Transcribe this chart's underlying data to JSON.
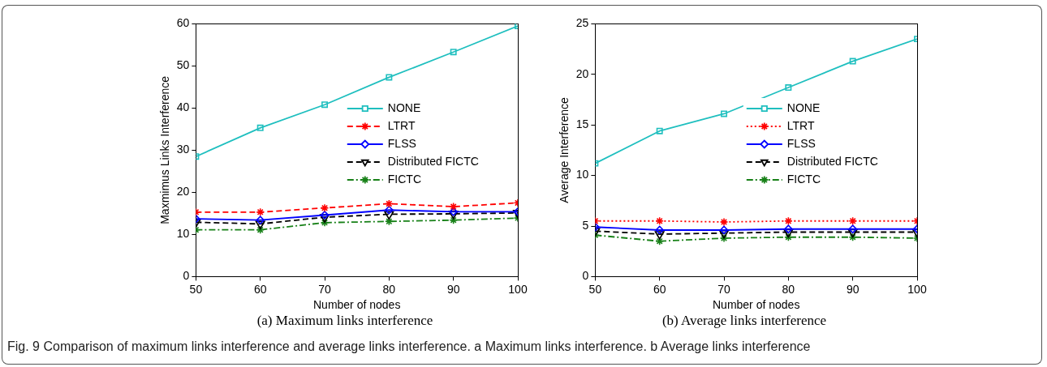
{
  "chart_data": [
    {
      "type": "line",
      "subtitle": "(a) Maximum links interference",
      "xlabel": "Number of nodes",
      "ylabel": "Maxmimus Links Interference",
      "x": [
        50,
        60,
        70,
        80,
        90,
        100
      ],
      "xlim": [
        50,
        100
      ],
      "xticks": [
        50,
        60,
        70,
        80,
        90,
        100
      ],
      "ylim": [
        0,
        60
      ],
      "yticks": [
        0,
        10,
        20,
        30,
        40,
        50,
        60
      ],
      "grid": false,
      "legend": "right",
      "series": [
        {
          "name": "NONE",
          "color": "#1fbfbf",
          "marker": "square",
          "line_style": "solid",
          "values": [
            28.5,
            35.3,
            40.8,
            47.3,
            53.3,
            59.5
          ]
        },
        {
          "name": "LTRT",
          "color": "#ff0000",
          "marker": "cross",
          "line_style": "dashed",
          "values": [
            15.3,
            15.3,
            16.3,
            17.3,
            16.6,
            17.5
          ]
        },
        {
          "name": "FLSS",
          "color": "#0000ff",
          "marker": "diamond",
          "line_style": "solid",
          "values": [
            13.7,
            13.4,
            14.6,
            15.8,
            15.4,
            15.4
          ]
        },
        {
          "name": "Distributed FICTC",
          "color": "#000000",
          "marker": "triangle",
          "line_style": "dashed",
          "values": [
            12.9,
            12.5,
            14.1,
            14.8,
            14.9,
            15.1
          ]
        },
        {
          "name": "FICTC",
          "color": "#178017",
          "marker": "cross",
          "line_style": "dashdot",
          "values": [
            11.1,
            11.1,
            12.8,
            13.1,
            13.4,
            13.9
          ]
        }
      ],
      "annotations": [
        "Fig. 9 Comparison of maximum links interference and average links interference. a Maximum links interference. b Average links interference"
      ]
    },
    {
      "type": "line",
      "subtitle": "(b) Average links interference",
      "xlabel": "Number of nodes",
      "ylabel": "Average Interference",
      "x": [
        50,
        60,
        70,
        80,
        90,
        100
      ],
      "xlim": [
        50,
        100
      ],
      "xticks": [
        50,
        60,
        70,
        80,
        90,
        100
      ],
      "ylim": [
        0,
        25
      ],
      "yticks": [
        0,
        5,
        10,
        15,
        20,
        25
      ],
      "grid": false,
      "legend": "right",
      "series": [
        {
          "name": "NONE",
          "color": "#1fbfbf",
          "marker": "square",
          "line_style": "solid",
          "values": [
            11.2,
            14.4,
            16.1,
            18.7,
            21.3,
            23.5
          ]
        },
        {
          "name": "LTRT",
          "color": "#ff0000",
          "marker": "cross",
          "line_style": "dotted",
          "values": [
            5.5,
            5.5,
            5.4,
            5.5,
            5.5,
            5.5
          ]
        },
        {
          "name": "FLSS",
          "color": "#0000ff",
          "marker": "diamond",
          "line_style": "solid",
          "values": [
            4.9,
            4.6,
            4.6,
            4.7,
            4.7,
            4.7
          ]
        },
        {
          "name": "Distributed FICTC",
          "color": "#000000",
          "marker": "triangle",
          "line_style": "dashed",
          "values": [
            4.5,
            4.2,
            4.3,
            4.4,
            4.4,
            4.4
          ]
        },
        {
          "name": "FICTC",
          "color": "#178017",
          "marker": "cross",
          "line_style": "dashdot",
          "values": [
            4.1,
            3.5,
            3.8,
            3.9,
            3.9,
            3.8
          ]
        }
      ]
    }
  ]
}
